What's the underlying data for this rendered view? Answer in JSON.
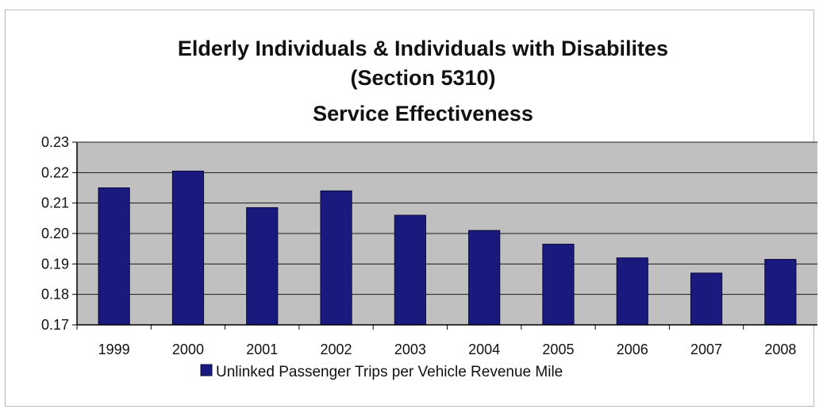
{
  "chart_data": {
    "type": "bar",
    "title_lines": [
      "Elderly Individuals & Individuals with Disabilites",
      "(Section 5310)",
      "Service Effectiveness"
    ],
    "categories": [
      "1999",
      "2000",
      "2001",
      "2002",
      "2003",
      "2004",
      "2005",
      "2006",
      "2007",
      "2008"
    ],
    "series": [
      {
        "name": "Unlinked Passenger Trips per Vehicle Revenue Mile",
        "values": [
          0.215,
          0.2205,
          0.2085,
          0.214,
          0.206,
          0.201,
          0.1965,
          0.192,
          0.187,
          0.1915
        ]
      }
    ],
    "ylim": [
      0.17,
      0.23
    ],
    "yticks": [
      "0.17",
      "0.18",
      "0.19",
      "0.20",
      "0.21",
      "0.22",
      "0.23"
    ],
    "grid": true,
    "legend_position": "bottom",
    "colors": {
      "bar": "#1a1a7e",
      "bar_stroke": "#0a0a3a",
      "plot_bg": "#c0c0c0",
      "grid": "#1a1a1a"
    }
  }
}
